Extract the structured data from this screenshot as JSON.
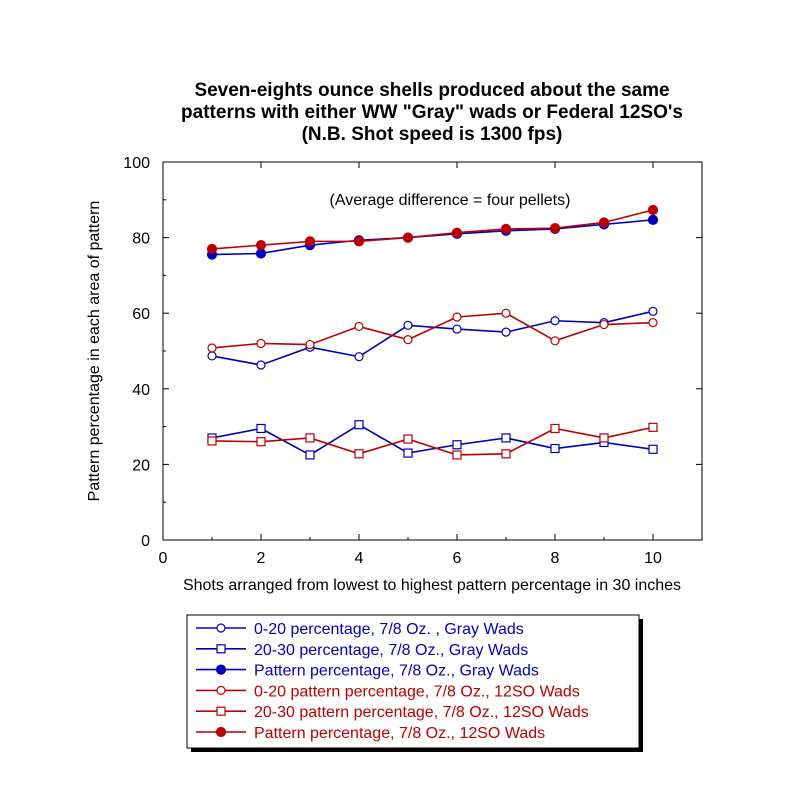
{
  "chart_data": {
    "type": "line",
    "title_lines": [
      "Seven-eights ounce shells produced about the same",
      "patterns with either WW \"Gray\" wads or Federal 12SO's",
      "(N.B. Shot speed is 1300 fps)"
    ],
    "xlabel": "Shots arranged from lowest to highest pattern percentage in 30 inches",
    "ylabel": "Pattern percentage in each area of pattern",
    "xlim": [
      0,
      11
    ],
    "ylim": [
      0,
      100
    ],
    "xticks": [
      "0",
      "2",
      "4",
      "6",
      "8",
      "10"
    ],
    "yticks": [
      "0",
      "20",
      "40",
      "60",
      "80",
      "100"
    ],
    "annotation": "(Average difference = four pellets)",
    "grid": false,
    "legend_position": "bottom",
    "x": [
      1,
      2,
      3,
      4,
      5,
      6,
      7,
      8,
      9,
      10
    ],
    "series": [
      {
        "name": "0-20 percentage, 7/8 Oz. , Gray Wads",
        "color": "#0000bb",
        "marker": "open-circle",
        "values": [
          48.7,
          46.3,
          51.0,
          48.5,
          56.8,
          55.8,
          55.0,
          58.0,
          57.5,
          60.5
        ]
      },
      {
        "name": "20-30 percentage, 7/8 Oz., Gray Wads",
        "color": "#0000bb",
        "marker": "open-square",
        "values": [
          27.0,
          29.5,
          22.5,
          30.5,
          23.0,
          25.2,
          27.0,
          24.2,
          25.8,
          24.0
        ]
      },
      {
        "name": "Pattern percentage, 7/8 Oz., Gray Wads",
        "color": "#0000bb",
        "marker": "filled-circle",
        "values": [
          75.5,
          75.8,
          78.0,
          79.3,
          80.0,
          81.0,
          81.8,
          82.3,
          83.5,
          84.7
        ]
      },
      {
        "name": "0-20 pattern percentage, 7/8 Oz., 12SO Wads",
        "color": "#bb0000",
        "marker": "open-circle",
        "values": [
          50.8,
          52.0,
          51.7,
          56.5,
          53.0,
          59.0,
          60.0,
          52.7,
          57.0,
          57.5
        ]
      },
      {
        "name": "20-30 pattern percentage, 7/8 Oz., 12SO Wads",
        "color": "#bb0000",
        "marker": "open-square",
        "values": [
          26.2,
          26.0,
          27.0,
          22.8,
          26.7,
          22.5,
          22.8,
          29.5,
          27.0,
          29.8
        ]
      },
      {
        "name": "Pattern percentage, 7/8 Oz., 12SO Wads",
        "color": "#bb0000",
        "marker": "filled-circle",
        "values": [
          77.0,
          78.0,
          79.0,
          79.0,
          80.0,
          81.3,
          82.3,
          82.5,
          84.0,
          87.3
        ]
      }
    ]
  }
}
